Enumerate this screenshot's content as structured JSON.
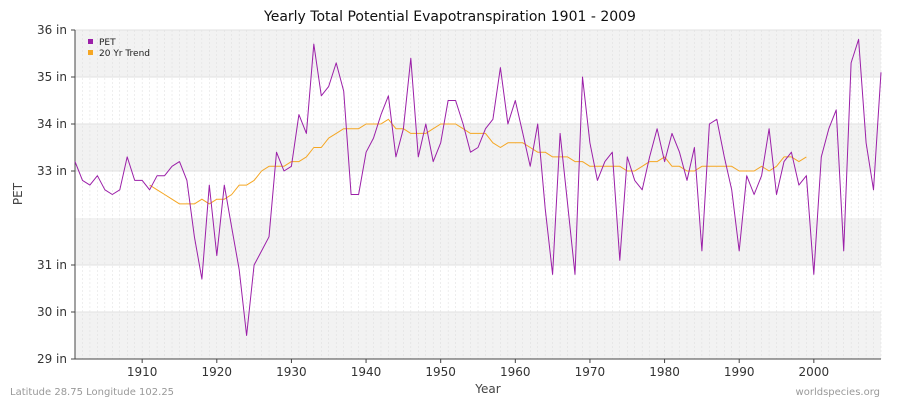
{
  "chart_data": {
    "type": "line",
    "title": "Yearly Total Potential Evapotranspiration 1901 - 2009",
    "xlabel": "Year",
    "ylabel": "PET",
    "xlim": [
      1901,
      2009
    ],
    "ylim": [
      29,
      36
    ],
    "x_ticks": [
      1910,
      1920,
      1930,
      1940,
      1950,
      1960,
      1970,
      1980,
      1990,
      2000
    ],
    "x_tick_labels": [
      "1910",
      "1920",
      "1930",
      "1940",
      "1950",
      "1960",
      "1970",
      "1980",
      "1990",
      "2000"
    ],
    "y_ticks": [
      29,
      30,
      31,
      33,
      34,
      35,
      36
    ],
    "y_tick_labels": [
      "29 in",
      "30 in",
      "31 in",
      "33 in",
      "34 in",
      "35 in",
      "36 in"
    ],
    "legend_position": "top-left",
    "grid": true,
    "series": [
      {
        "name": "PET",
        "color": "#9b1fa8",
        "x": [
          1901,
          1902,
          1903,
          1904,
          1905,
          1906,
          1907,
          1908,
          1909,
          1910,
          1911,
          1912,
          1913,
          1914,
          1915,
          1916,
          1917,
          1918,
          1919,
          1920,
          1921,
          1922,
          1923,
          1924,
          1925,
          1926,
          1927,
          1928,
          1929,
          1930,
          1931,
          1932,
          1933,
          1934,
          1935,
          1936,
          1937,
          1938,
          1939,
          1940,
          1941,
          1942,
          1943,
          1944,
          1945,
          1946,
          1947,
          1948,
          1949,
          1950,
          1951,
          1952,
          1953,
          1954,
          1955,
          1956,
          1957,
          1958,
          1959,
          1960,
          1961,
          1962,
          1963,
          1964,
          1965,
          1966,
          1967,
          1968,
          1969,
          1970,
          1971,
          1972,
          1973,
          1974,
          1975,
          1976,
          1977,
          1978,
          1979,
          1980,
          1981,
          1982,
          1983,
          1984,
          1985,
          1986,
          1987,
          1988,
          1989,
          1990,
          1991,
          1992,
          1993,
          1994,
          1995,
          1996,
          1997,
          1998,
          1999,
          2000,
          2001,
          2002,
          2003,
          2004,
          2005,
          2006,
          2007,
          2008,
          2009
        ],
        "values": [
          33.2,
          32.8,
          32.7,
          32.9,
          32.6,
          32.5,
          32.6,
          33.3,
          32.8,
          32.8,
          32.6,
          32.9,
          32.9,
          33.1,
          33.2,
          32.8,
          31.6,
          30.7,
          32.7,
          31.2,
          32.7,
          31.8,
          30.9,
          29.5,
          31.0,
          31.3,
          31.6,
          33.4,
          33.0,
          33.1,
          34.2,
          33.8,
          35.7,
          34.6,
          34.8,
          35.3,
          34.7,
          32.5,
          32.5,
          33.4,
          33.7,
          34.2,
          34.6,
          33.3,
          33.9,
          35.4,
          33.3,
          34.0,
          33.2,
          33.6,
          34.5,
          34.5,
          34.0,
          33.4,
          33.5,
          33.9,
          34.1,
          35.2,
          34.0,
          34.5,
          33.8,
          33.1,
          34.0,
          32.2,
          30.8,
          33.8,
          32.3,
          30.8,
          35.0,
          33.6,
          32.8,
          33.2,
          33.4,
          31.1,
          33.3,
          32.8,
          32.6,
          33.3,
          33.9,
          33.2,
          33.8,
          33.4,
          32.8,
          33.5,
          31.3,
          34.0,
          34.1,
          33.3,
          32.6,
          31.3,
          32.9,
          32.5,
          32.9,
          33.9,
          32.5,
          33.2,
          33.4,
          32.7,
          32.9,
          30.8,
          33.3,
          33.9,
          34.3,
          31.3,
          35.3,
          35.8,
          33.6,
          32.6,
          35.1
        ]
      },
      {
        "name": "20 Yr Trend",
        "color": "#f5a623",
        "x": [
          1911,
          1912,
          1913,
          1914,
          1915,
          1916,
          1917,
          1918,
          1919,
          1920,
          1921,
          1922,
          1923,
          1924,
          1925,
          1926,
          1927,
          1928,
          1929,
          1930,
          1931,
          1932,
          1933,
          1934,
          1935,
          1936,
          1937,
          1938,
          1939,
          1940,
          1941,
          1942,
          1943,
          1944,
          1945,
          1946,
          1947,
          1948,
          1949,
          1950,
          1951,
          1952,
          1953,
          1954,
          1955,
          1956,
          1957,
          1958,
          1959,
          1960,
          1961,
          1962,
          1963,
          1964,
          1965,
          1966,
          1967,
          1968,
          1969,
          1970,
          1971,
          1972,
          1973,
          1974,
          1975,
          1976,
          1977,
          1978,
          1979,
          1980,
          1981,
          1982,
          1983,
          1984,
          1985,
          1986,
          1987,
          1988,
          1989,
          1990,
          1991,
          1992,
          1993,
          1994,
          1995,
          1996,
          1997,
          1998,
          1999
        ],
        "values": [
          32.7,
          32.6,
          32.5,
          32.4,
          32.3,
          32.3,
          32.3,
          32.4,
          32.3,
          32.4,
          32.4,
          32.5,
          32.7,
          32.7,
          32.8,
          33.0,
          33.1,
          33.1,
          33.1,
          33.2,
          33.2,
          33.3,
          33.5,
          33.5,
          33.7,
          33.8,
          33.9,
          33.9,
          33.9,
          34.0,
          34.0,
          34.0,
          34.1,
          33.9,
          33.9,
          33.8,
          33.8,
          33.8,
          33.9,
          34.0,
          34.0,
          34.0,
          33.9,
          33.8,
          33.8,
          33.8,
          33.6,
          33.5,
          33.6,
          33.6,
          33.6,
          33.5,
          33.4,
          33.4,
          33.3,
          33.3,
          33.3,
          33.2,
          33.2,
          33.1,
          33.1,
          33.1,
          33.1,
          33.1,
          33.0,
          33.0,
          33.1,
          33.2,
          33.2,
          33.3,
          33.1,
          33.1,
          33.0,
          33.0,
          33.1,
          33.1,
          33.1,
          33.1,
          33.1,
          33.0,
          33.0,
          33.0,
          33.1,
          33.0,
          33.1,
          33.3,
          33.3,
          33.2,
          33.3
        ]
      }
    ]
  },
  "footer": {
    "location": "Latitude 28.75 Longitude 102.25",
    "source": "worldspecies.org"
  }
}
